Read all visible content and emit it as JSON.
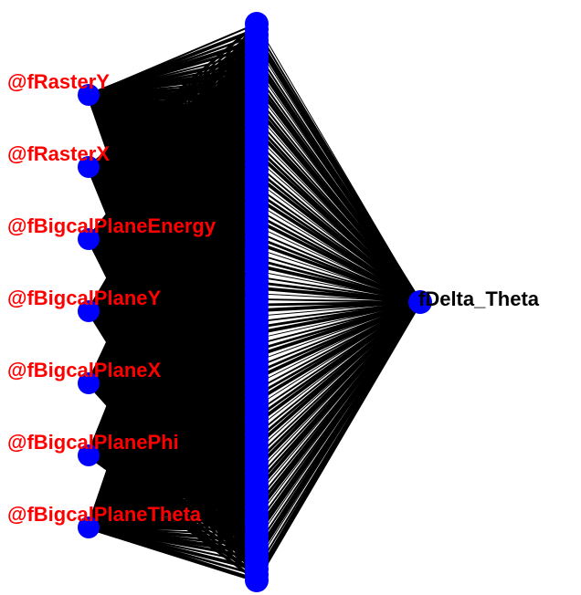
{
  "network": {
    "input_neurons": [
      {
        "label": "@fRasterY"
      },
      {
        "label": "@fRasterX"
      },
      {
        "label": "@fBigcalPlaneEnergy"
      },
      {
        "label": "@fBigcalPlaneY"
      },
      {
        "label": "@fBigcalPlaneX"
      },
      {
        "label": "@fBigcalPlanePhi"
      },
      {
        "label": "@fBigcalPlaneTheta"
      }
    ],
    "hidden_layer_neuron_count": 100,
    "output_neurons": [
      {
        "label": "fDelta_Theta"
      }
    ]
  },
  "colors": {
    "neuron": "#0000ff",
    "synapse": "#000000",
    "input_label": "#ff0000",
    "output_label": "#000000",
    "background": "#ffffff"
  }
}
